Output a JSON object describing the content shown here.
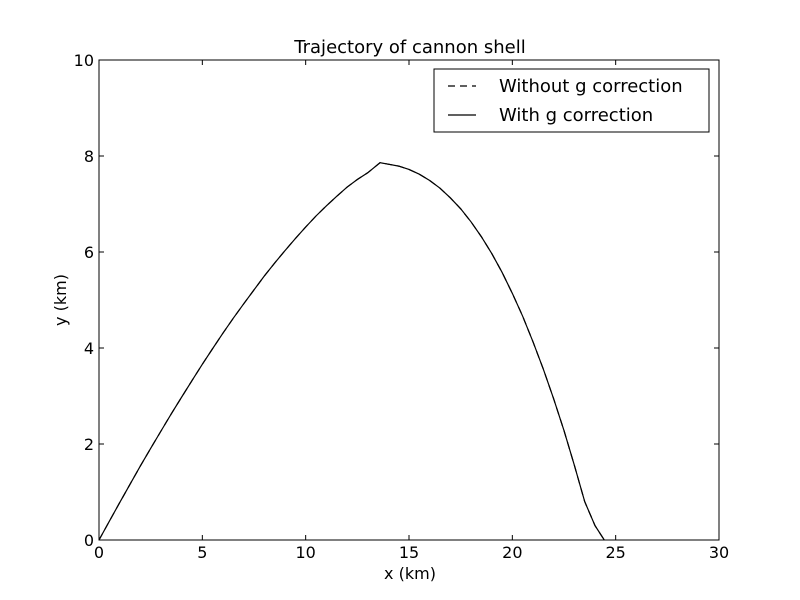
{
  "chart_data": {
    "type": "line",
    "title": "Trajectory of cannon shell",
    "xlabel": "x (km)",
    "ylabel": "y (km)",
    "xlim": [
      0,
      30
    ],
    "ylim": [
      0,
      10
    ],
    "xticks": [
      0,
      5,
      10,
      15,
      20,
      25,
      30
    ],
    "yticks": [
      0,
      2,
      4,
      6,
      8,
      10
    ],
    "grid": false,
    "legend_position": "top-right",
    "series": [
      {
        "name": "Without g correction",
        "style": "dashed",
        "color": "#000000",
        "x": [
          0,
          0.5,
          1,
          1.5,
          2,
          2.5,
          3,
          3.5,
          4,
          4.5,
          5,
          5.5,
          6,
          6.5,
          7,
          7.5,
          8,
          8.5,
          9,
          9.5,
          10,
          10.5,
          11,
          11.5,
          12,
          12.5,
          13,
          13.6,
          14,
          14.5,
          15,
          15.5,
          16,
          16.5,
          17,
          17.5,
          18,
          18.5,
          19,
          19.5,
          20,
          20.5,
          21,
          21.5,
          22,
          22.5,
          23,
          23.5,
          24,
          24.45
        ],
        "y": [
          0,
          0.39,
          0.78,
          1.16,
          1.54,
          1.91,
          2.27,
          2.63,
          2.98,
          3.32,
          3.66,
          3.99,
          4.31,
          4.62,
          4.92,
          5.21,
          5.5,
          5.77,
          6.03,
          6.28,
          6.52,
          6.75,
          6.96,
          7.16,
          7.35,
          7.51,
          7.65,
          7.86,
          7.83,
          7.79,
          7.72,
          7.62,
          7.49,
          7.33,
          7.13,
          6.9,
          6.63,
          6.32,
          5.97,
          5.58,
          5.14,
          4.66,
          4.13,
          3.56,
          2.94,
          2.28,
          1.56,
          0.8,
          0.3,
          0
        ]
      },
      {
        "name": "With g correction",
        "style": "solid",
        "color": "#000000",
        "x": [
          0,
          0.5,
          1,
          1.5,
          2,
          2.5,
          3,
          3.5,
          4,
          4.5,
          5,
          5.5,
          6,
          6.5,
          7,
          7.5,
          8,
          8.5,
          9,
          9.5,
          10,
          10.5,
          11,
          11.5,
          12,
          12.5,
          13,
          13.6,
          14,
          14.5,
          15,
          15.5,
          16,
          16.5,
          17,
          17.5,
          18,
          18.5,
          19,
          19.5,
          20,
          20.5,
          21,
          21.5,
          22,
          22.5,
          23,
          23.5,
          24,
          24.45
        ],
        "y": [
          0,
          0.39,
          0.78,
          1.16,
          1.54,
          1.91,
          2.27,
          2.63,
          2.98,
          3.32,
          3.66,
          3.99,
          4.31,
          4.62,
          4.92,
          5.21,
          5.5,
          5.77,
          6.03,
          6.28,
          6.52,
          6.75,
          6.96,
          7.16,
          7.35,
          7.51,
          7.65,
          7.86,
          7.83,
          7.79,
          7.72,
          7.62,
          7.49,
          7.33,
          7.13,
          6.9,
          6.63,
          6.32,
          5.97,
          5.58,
          5.14,
          4.66,
          4.13,
          3.56,
          2.94,
          2.28,
          1.56,
          0.8,
          0.3,
          0
        ]
      }
    ]
  }
}
